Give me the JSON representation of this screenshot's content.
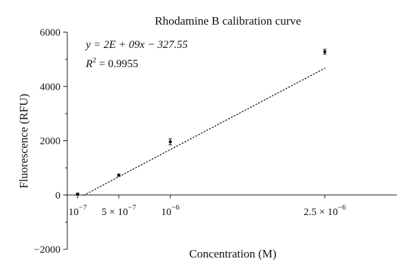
{
  "chart_data": {
    "type": "scatter",
    "title": "Rhodamine B calibration curve",
    "xlabel": "Concentration (M)",
    "ylabel": "Fluorescence (RFU)",
    "ylim": [
      -2000,
      6000
    ],
    "xlim": [
      0,
      3.2e-06
    ],
    "y_ticks": [
      -2000,
      0,
      2000,
      4000,
      6000
    ],
    "y_tick_labels": [
      "−2000",
      "0",
      "2000",
      "4000",
      "6000"
    ],
    "x_ticks": [
      1e-07,
      5e-07,
      1e-06,
      2.5e-06
    ],
    "x_tick_labels": [
      {
        "base": "10",
        "exp": "−7"
      },
      {
        "base": "5 × 10",
        "exp": "−7"
      },
      {
        "base": "10",
        "exp": "−6"
      },
      {
        "base": "2.5 × 10",
        "exp": "−6"
      }
    ],
    "points": [
      {
        "x": 1e-07,
        "y": 30,
        "err": 40
      },
      {
        "x": 5e-07,
        "y": 730,
        "err": 40
      },
      {
        "x": 1e-06,
        "y": 1960,
        "err": 110
      },
      {
        "x": 2.5e-06,
        "y": 5280,
        "err": 90
      }
    ],
    "trendline": {
      "style": "dotted",
      "x": [
        1.6e-07,
        2.5e-06
      ],
      "y": [
        -7.55,
        4672.45
      ]
    },
    "annotations": {
      "equation": "y = 2E + 09x − 327.55",
      "r2_label": "R",
      "r2_exp": "2",
      "r2_value": " = 0.9955"
    },
    "grid": false,
    "legend": "none"
  }
}
